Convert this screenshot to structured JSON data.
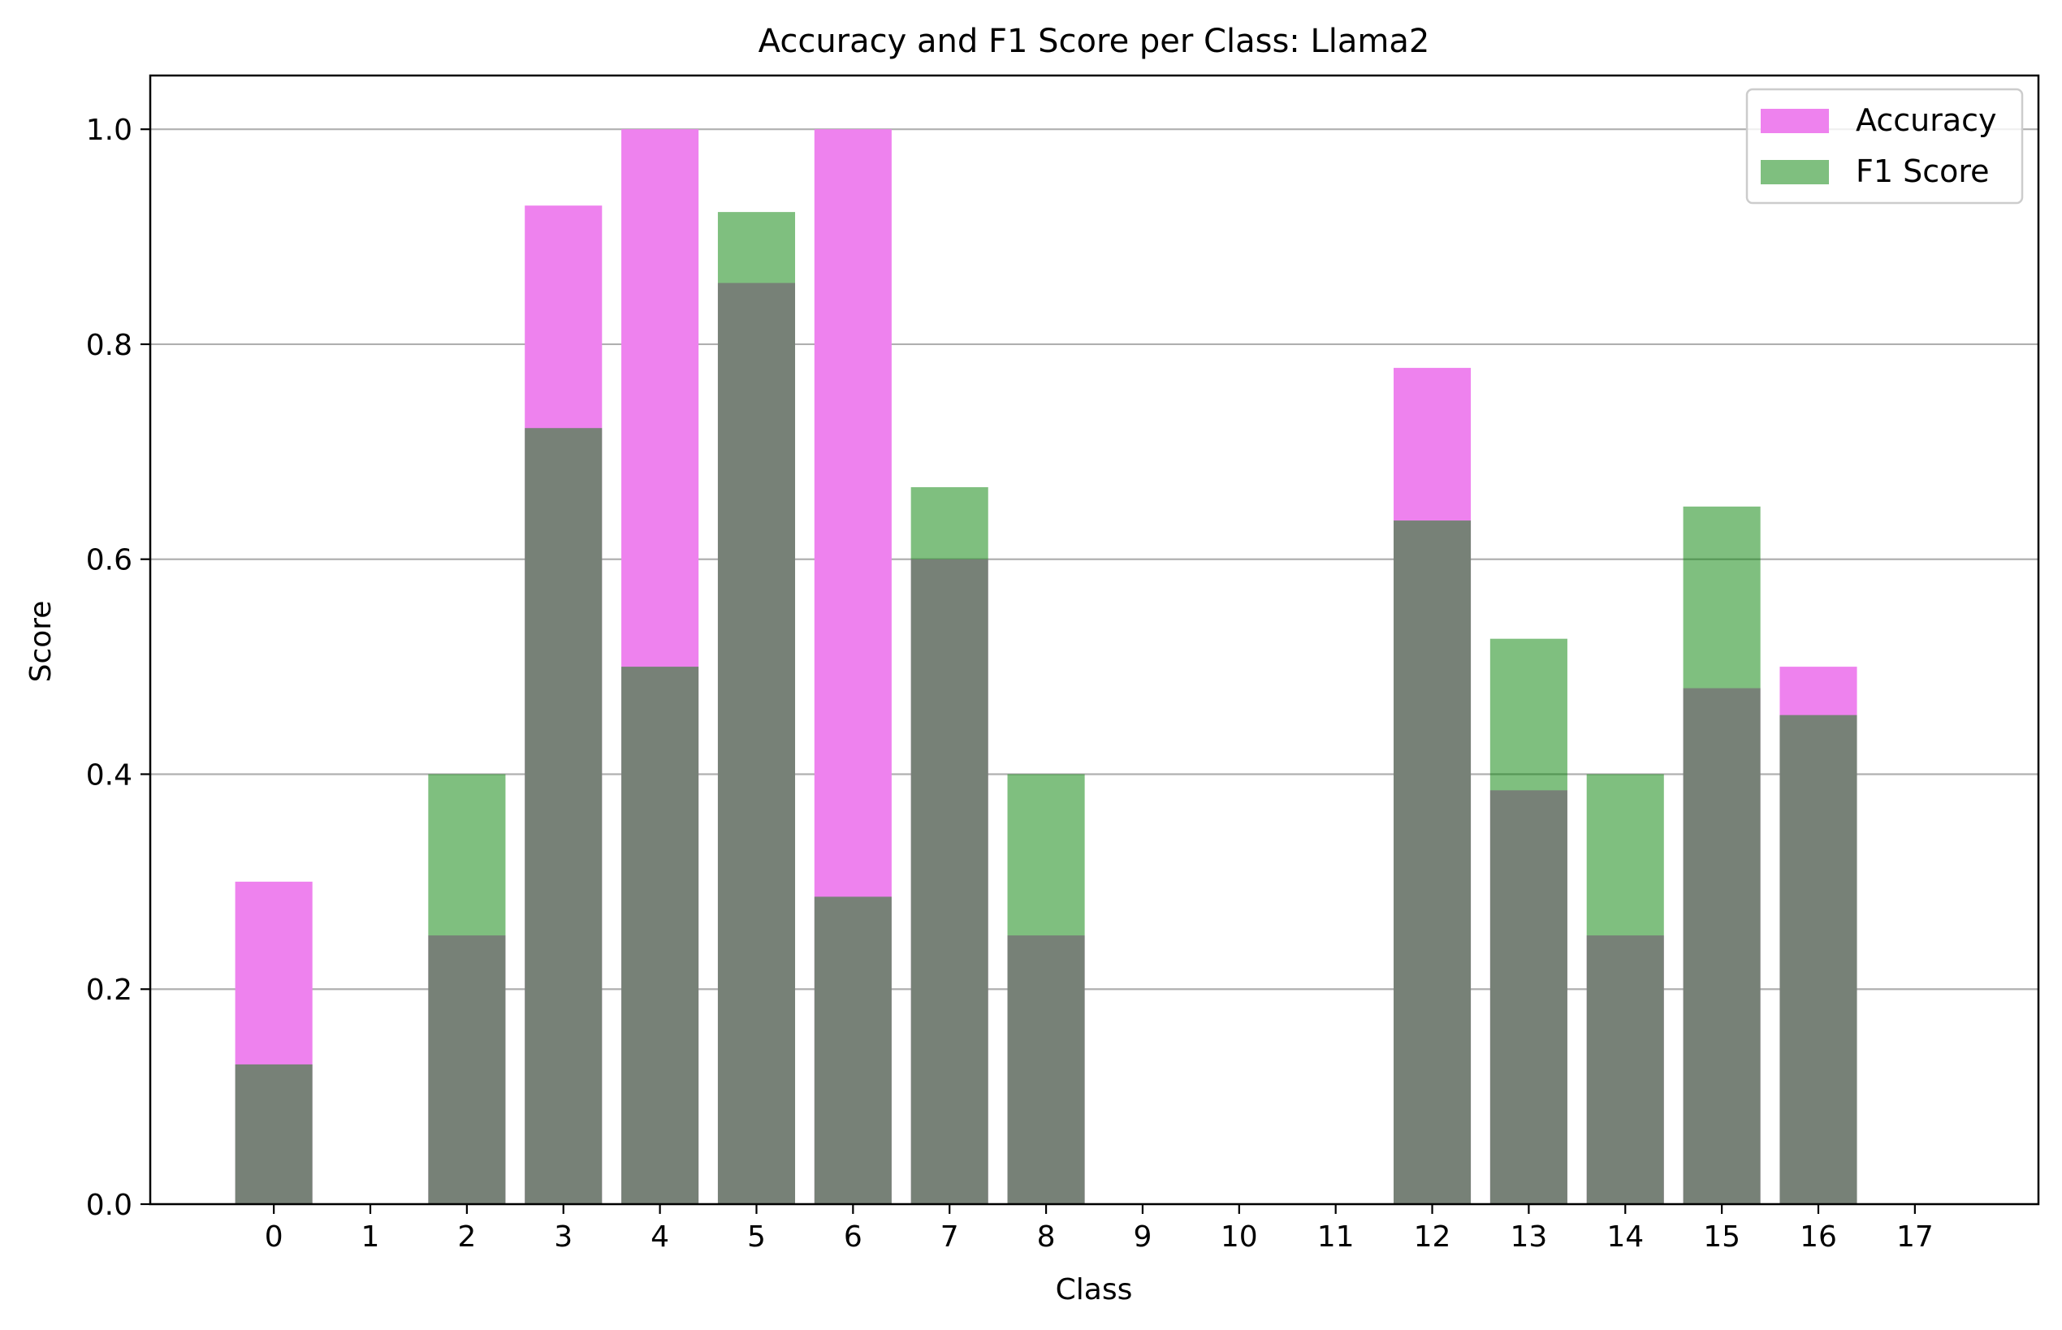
{
  "chart_data": {
    "type": "bar",
    "title": "Accuracy and F1 Score per Class: Llama2",
    "xlabel": "Class",
    "ylabel": "Score",
    "ylim": [
      0,
      1.05
    ],
    "yticks": [
      "0.0",
      "0.2",
      "0.4",
      "0.6",
      "0.8",
      "1.0"
    ],
    "categories": [
      "0",
      "1",
      "2",
      "3",
      "4",
      "5",
      "6",
      "7",
      "8",
      "9",
      "10",
      "11",
      "12",
      "13",
      "14",
      "15",
      "16",
      "17"
    ],
    "grid": "horizontal",
    "legend_position": "top-right",
    "series": [
      {
        "name": "Accuracy",
        "color": "#ee82ee",
        "values": [
          0.3,
          0.0,
          0.25,
          0.929,
          1.0,
          0.857,
          1.0,
          0.6,
          0.25,
          0.0,
          0.0,
          0.0,
          0.778,
          0.385,
          0.25,
          0.48,
          0.5,
          0.0
        ]
      },
      {
        "name": "F1 Score",
        "color": "#008000",
        "opacity": 0.5,
        "values": [
          0.13,
          0.0,
          0.4,
          0.722,
          0.5,
          0.923,
          0.286,
          0.667,
          0.4,
          0.0,
          0.0,
          0.0,
          0.636,
          0.526,
          0.4,
          0.649,
          0.455,
          0.0
        ]
      }
    ]
  }
}
